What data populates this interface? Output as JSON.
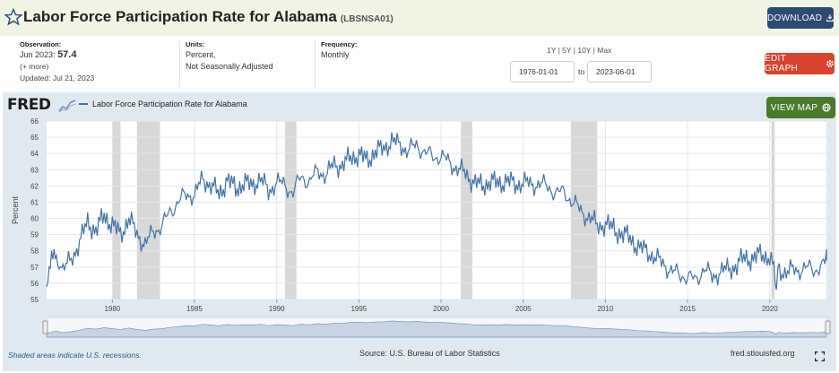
{
  "header": {
    "title": "Labor Force Participation Rate for Alabama",
    "series_id": "(LBSNSA01)",
    "download_label": "DOWNLOAD",
    "edit_label": "EDIT GRAPH",
    "map_label": "VIEW MAP"
  },
  "meta": {
    "observation_label": "Observation:",
    "observation_date": "Jun 2023:",
    "observation_value": "57.4",
    "more": "(+ more)",
    "updated": "Updated: Jul 21, 2023",
    "units_label": "Units:",
    "units_line1": "Percent,",
    "units_line2": "Not Seasonally Adjusted",
    "frequency_label": "Frequency:",
    "frequency_value": "Monthly"
  },
  "range": {
    "options": [
      "1Y",
      "5Y",
      "10Y",
      "Max"
    ],
    "text": "1Y | 5Y | 10Y | Max",
    "from": "1976-01-01",
    "to_label": "to",
    "to": "2023-06-01"
  },
  "brand": {
    "logo": "FRED"
  },
  "footer": {
    "shaded_note": "Shaded areas indicate U.S. recessions.",
    "source": "Source: U.S. Bureau of Labor Statistics",
    "url": "fred.stlouisfed.org"
  },
  "colors": {
    "series": "#4572a7",
    "recession": "#d8d8d8",
    "panel": "#e1e9f0",
    "download": "#2d4a73",
    "edit": "#d9432e",
    "map": "#4a7a2c"
  },
  "chart_data": {
    "type": "line",
    "ylabel": "Percent",
    "legend": "Labor Force Participation Rate for Alabama",
    "legend_position": "top-left",
    "ylim": [
      55,
      66
    ],
    "yticks": [
      55,
      56,
      57,
      58,
      59,
      60,
      61,
      62,
      63,
      64,
      65,
      66
    ],
    "xlim": [
      1976.0,
      2023.45
    ],
    "xticks": [
      1980,
      1985,
      1990,
      1995,
      2000,
      2005,
      2010,
      2015,
      2020
    ],
    "grid": true,
    "recessions": [
      [
        1980.0,
        1980.5
      ],
      [
        1981.5,
        1982.9
      ],
      [
        1990.5,
        1991.2
      ],
      [
        2001.2,
        2001.9
      ],
      [
        2007.9,
        2009.5
      ],
      [
        2020.1,
        2020.3
      ]
    ],
    "series": [
      {
        "x": [
          1976.0,
          1976.3,
          1976.6,
          1977.0,
          1977.5,
          1978.0,
          1978.5,
          1979.0,
          1979.5,
          1980.0,
          1980.5,
          1981.0,
          1981.5,
          1982.0,
          1982.5,
          1983.0,
          1983.5,
          1984.0,
          1984.5,
          1985.0,
          1985.5,
          1986.0,
          1986.5,
          1987.0,
          1987.5,
          1988.0,
          1988.5,
          1989.0,
          1989.5,
          1990.0,
          1990.5,
          1991.0,
          1991.5,
          1992.0,
          1992.5,
          1993.0,
          1993.5,
          1994.0,
          1994.5,
          1995.0,
          1995.5,
          1996.0,
          1996.5,
          1997.0,
          1997.5,
          1998.0,
          1998.5,
          1999.0,
          1999.5,
          2000.0,
          2000.5,
          2001.0,
          2001.5,
          2002.0,
          2002.5,
          2003.0,
          2003.5,
          2004.0,
          2004.5,
          2005.0,
          2005.5,
          2006.0,
          2006.5,
          2007.0,
          2007.5,
          2008.0,
          2008.5,
          2009.0,
          2009.5,
          2010.0,
          2010.5,
          2011.0,
          2011.5,
          2012.0,
          2012.5,
          2013.0,
          2013.5,
          2014.0,
          2014.5,
          2015.0,
          2015.5,
          2016.0,
          2016.5,
          2017.0,
          2017.5,
          2018.0,
          2018.5,
          2019.0,
          2019.5,
          2020.0,
          2020.25,
          2020.4,
          2020.5,
          2021.0,
          2021.5,
          2022.0,
          2022.5,
          2023.0,
          2023.45
        ],
        "values": [
          56.0,
          57.2,
          57.8,
          56.8,
          57.5,
          58.5,
          59.8,
          59.2,
          60.2,
          59.6,
          59.0,
          60.0,
          59.0,
          58.4,
          59.2,
          59.5,
          60.4,
          61.0,
          61.5,
          61.4,
          62.5,
          62.0,
          61.5,
          62.4,
          61.8,
          62.2,
          62.0,
          62.5,
          61.6,
          62.3,
          62.0,
          61.6,
          62.6,
          62.2,
          63.0,
          62.6,
          63.4,
          63.2,
          63.8,
          63.9,
          63.6,
          64.1,
          64.3,
          64.8,
          64.5,
          64.2,
          64.5,
          64.1,
          63.8,
          63.8,
          63.5,
          63.0,
          62.8,
          62.2,
          62.0,
          62.3,
          62.1,
          62.4,
          62.0,
          62.3,
          62.0,
          62.2,
          61.9,
          61.6,
          61.6,
          61.0,
          60.5,
          60.0,
          59.6,
          59.6,
          59.4,
          59.0,
          58.8,
          58.2,
          58.0,
          57.6,
          57.2,
          56.8,
          56.5,
          56.4,
          56.2,
          56.9,
          56.4,
          56.7,
          56.9,
          57.1,
          57.6,
          57.5,
          57.8,
          57.6,
          56.8,
          55.5,
          57.0,
          56.6,
          56.9,
          56.8,
          57.0,
          56.8,
          57.4
        ]
      }
    ]
  }
}
